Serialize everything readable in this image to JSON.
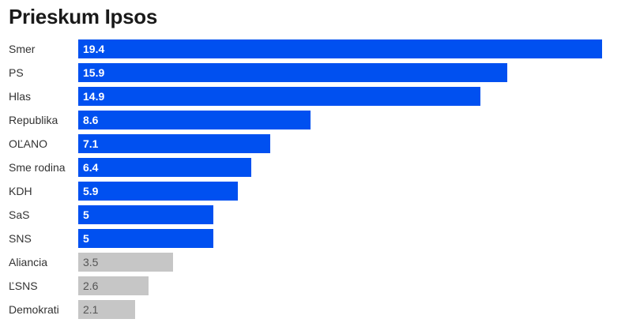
{
  "chart_data": {
    "type": "bar",
    "orientation": "horizontal",
    "title": "Prieskum Ipsos",
    "categories": [
      "Smer",
      "PS",
      "Hlas",
      "Republika",
      "OĽANO",
      "Sme rodina",
      "KDH",
      "SaS",
      "SNS",
      "Aliancia",
      "ĽSNS",
      "Demokrati"
    ],
    "values": [
      19.4,
      15.9,
      14.9,
      8.6,
      7.1,
      6.4,
      5.9,
      5,
      5,
      3.5,
      2.6,
      2.1
    ],
    "value_labels": [
      "19.4",
      "15.9",
      "14.9",
      "8.6",
      "7.1",
      "6.4",
      "5.9",
      "5",
      "5",
      "3.5",
      "2.6",
      "2.1"
    ],
    "highlighted": [
      true,
      true,
      true,
      true,
      true,
      true,
      true,
      true,
      true,
      false,
      false,
      false
    ],
    "xlim": [
      0,
      19.4
    ],
    "grid": false,
    "legend": "none",
    "colors": {
      "highlight": "#0050f0",
      "muted": "#c6c6c6"
    }
  }
}
